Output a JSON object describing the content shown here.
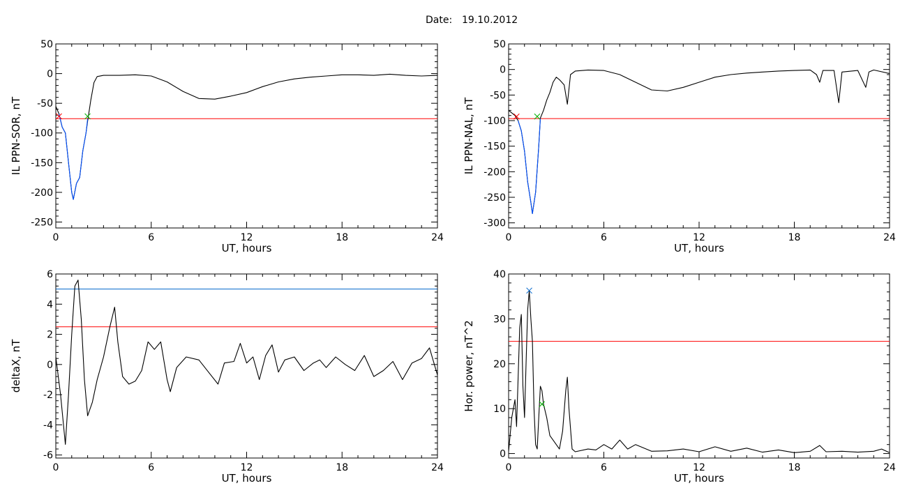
{
  "title_label": "Date:",
  "title_date": "19.10.2012",
  "chart_data": [
    {
      "id": "tl",
      "type": "line",
      "ylabel": "IL PPN-SOR, nT",
      "xlabel": "UT, hours",
      "xlim": [
        0,
        24
      ],
      "ylim": [
        -260,
        50
      ],
      "xticks": [
        0,
        6,
        12,
        18,
        24
      ],
      "yticks": [
        50,
        0,
        -50,
        -100,
        -150,
        -200,
        -250
      ],
      "threshold": [
        {
          "y": -76,
          "color": "#ff0000"
        }
      ],
      "series": [
        {
          "color": "#000000",
          "points": [
            [
              0,
              -55
            ],
            [
              0.2,
              -68
            ],
            [
              0.4,
              -90
            ],
            [
              0.6,
              -100
            ],
            [
              0.8,
              -150
            ],
            [
              1.0,
              -200
            ],
            [
              1.1,
              -212
            ],
            [
              1.3,
              -185
            ],
            [
              1.5,
              -175
            ],
            [
              1.7,
              -130
            ],
            [
              1.9,
              -100
            ],
            [
              2.0,
              -80
            ],
            [
              2.2,
              -45
            ],
            [
              2.4,
              -15
            ],
            [
              2.6,
              -5
            ],
            [
              3,
              -3
            ],
            [
              4,
              -3
            ],
            [
              5,
              -2
            ],
            [
              6,
              -4
            ],
            [
              7,
              -14
            ],
            [
              8,
              -30
            ],
            [
              9,
              -42
            ],
            [
              10,
              -43
            ],
            [
              11,
              -38
            ],
            [
              12,
              -32
            ],
            [
              13,
              -22
            ],
            [
              14,
              -14
            ],
            [
              15,
              -9
            ],
            [
              16,
              -6
            ],
            [
              17,
              -4
            ],
            [
              18,
              -2
            ],
            [
              19,
              -2
            ],
            [
              20,
              -3
            ],
            [
              21,
              -1
            ],
            [
              22,
              -3
            ],
            [
              23,
              -4
            ],
            [
              24,
              -3
            ]
          ]
        },
        {
          "color": "#0050ff",
          "points": [
            [
              0.2,
              -68
            ],
            [
              0.4,
              -90
            ],
            [
              0.6,
              -100
            ],
            [
              0.8,
              -150
            ],
            [
              1.0,
              -200
            ],
            [
              1.1,
              -212
            ],
            [
              1.3,
              -185
            ],
            [
              1.5,
              -175
            ],
            [
              1.7,
              -130
            ],
            [
              1.9,
              -100
            ],
            [
              2.0,
              -76
            ]
          ]
        }
      ],
      "markers": [
        {
          "x": 0.2,
          "y": -72,
          "color": "#ff0000"
        },
        {
          "x": 2.0,
          "y": -72,
          "color": "#00b000"
        }
      ]
    },
    {
      "id": "tr",
      "type": "line",
      "ylabel": "IL PPN-NAL, nT",
      "xlabel": "UT, hours",
      "xlim": [
        0,
        24
      ],
      "ylim": [
        -310,
        50
      ],
      "xticks": [
        0,
        6,
        12,
        18,
        24
      ],
      "yticks": [
        50,
        0,
        -50,
        -100,
        -150,
        -200,
        -250,
        -300
      ],
      "threshold": [
        {
          "y": -96,
          "color": "#ff0000"
        }
      ],
      "series": [
        {
          "color": "#000000",
          "points": [
            [
              0,
              -80
            ],
            [
              0.4,
              -90
            ],
            [
              0.6,
              -100
            ],
            [
              0.8,
              -120
            ],
            [
              1.0,
              -160
            ],
            [
              1.2,
              -220
            ],
            [
              1.4,
              -260
            ],
            [
              1.5,
              -282
            ],
            [
              1.7,
              -240
            ],
            [
              1.9,
              -150
            ],
            [
              2.0,
              -95
            ],
            [
              2.2,
              -80
            ],
            [
              2.4,
              -60
            ],
            [
              2.6,
              -45
            ],
            [
              2.8,
              -25
            ],
            [
              3.0,
              -15
            ],
            [
              3.2,
              -20
            ],
            [
              3.5,
              -30
            ],
            [
              3.7,
              -68
            ],
            [
              3.9,
              -10
            ],
            [
              4.2,
              -3
            ],
            [
              5,
              -1
            ],
            [
              6,
              -2
            ],
            [
              7,
              -10
            ],
            [
              8,
              -25
            ],
            [
              9,
              -40
            ],
            [
              10,
              -42
            ],
            [
              11,
              -35
            ],
            [
              12,
              -25
            ],
            [
              13,
              -15
            ],
            [
              14,
              -10
            ],
            [
              15,
              -7
            ],
            [
              16,
              -5
            ],
            [
              17,
              -3
            ],
            [
              18,
              -2
            ],
            [
              19,
              -1
            ],
            [
              19.4,
              -10
            ],
            [
              19.6,
              -25
            ],
            [
              19.8,
              -2
            ],
            [
              20.5,
              -2
            ],
            [
              20.8,
              -65
            ],
            [
              21.0,
              -5
            ],
            [
              22,
              -2
            ],
            [
              22.5,
              -35
            ],
            [
              22.7,
              -5
            ],
            [
              23,
              -1
            ],
            [
              24,
              -8
            ]
          ]
        },
        {
          "color": "#0050ff",
          "points": [
            [
              0.6,
              -100
            ],
            [
              0.8,
              -120
            ],
            [
              1.0,
              -160
            ],
            [
              1.2,
              -220
            ],
            [
              1.4,
              -260
            ],
            [
              1.5,
              -282
            ],
            [
              1.7,
              -240
            ],
            [
              1.9,
              -150
            ],
            [
              2.0,
              -96
            ]
          ]
        }
      ],
      "markers": [
        {
          "x": 0.5,
          "y": -92,
          "color": "#ff0000"
        },
        {
          "x": 1.8,
          "y": -92,
          "color": "#00b000"
        }
      ]
    },
    {
      "id": "bl",
      "type": "line",
      "ylabel": "deltaX, nT",
      "xlabel": "UT, hours",
      "xlim": [
        0,
        24
      ],
      "ylim": [
        -6.2,
        6
      ],
      "xticks": [
        0,
        6,
        12,
        18,
        24
      ],
      "yticks": [
        6,
        4,
        2,
        0,
        -2,
        -4,
        -6
      ],
      "threshold": [
        {
          "y": 5.0,
          "color": "#0066cc"
        },
        {
          "y": 2.5,
          "color": "#ff0000"
        }
      ],
      "series": [
        {
          "color": "#000000",
          "points": [
            [
              0,
              0.5
            ],
            [
              0.3,
              -2
            ],
            [
              0.6,
              -5.3
            ],
            [
              0.8,
              -2
            ],
            [
              1.0,
              2
            ],
            [
              1.2,
              5.2
            ],
            [
              1.4,
              5.6
            ],
            [
              1.6,
              3
            ],
            [
              1.8,
              -1
            ],
            [
              2.0,
              -3.4
            ],
            [
              2.3,
              -2.5
            ],
            [
              2.6,
              -1
            ],
            [
              3.0,
              0.5
            ],
            [
              3.4,
              2.5
            ],
            [
              3.7,
              3.8
            ],
            [
              3.9,
              1.5
            ],
            [
              4.2,
              -0.8
            ],
            [
              4.6,
              -1.3
            ],
            [
              5.0,
              -1.1
            ],
            [
              5.4,
              -0.4
            ],
            [
              5.8,
              1.5
            ],
            [
              6.2,
              1.0
            ],
            [
              6.6,
              1.5
            ],
            [
              7.0,
              -1
            ],
            [
              7.2,
              -1.8
            ],
            [
              7.6,
              -0.2
            ],
            [
              8.2,
              0.5
            ],
            [
              9.0,
              0.3
            ],
            [
              9.6,
              -0.5
            ],
            [
              10.2,
              -1.3
            ],
            [
              10.6,
              0.1
            ],
            [
              11.2,
              0.2
            ],
            [
              11.6,
              1.4
            ],
            [
              12.0,
              0.1
            ],
            [
              12.4,
              0.5
            ],
            [
              12.8,
              -1
            ],
            [
              13.2,
              0.6
            ],
            [
              13.6,
              1.3
            ],
            [
              14.0,
              -0.5
            ],
            [
              14.4,
              0.3
            ],
            [
              15.0,
              0.5
            ],
            [
              15.6,
              -0.4
            ],
            [
              16.2,
              0.1
            ],
            [
              16.6,
              0.3
            ],
            [
              17.0,
              -0.2
            ],
            [
              17.6,
              0.5
            ],
            [
              18.2,
              0.0
            ],
            [
              18.8,
              -0.4
            ],
            [
              19.4,
              0.6
            ],
            [
              20.0,
              -0.8
            ],
            [
              20.6,
              -0.4
            ],
            [
              21.2,
              0.2
            ],
            [
              21.8,
              -1
            ],
            [
              22.4,
              0.1
            ],
            [
              23.0,
              0.4
            ],
            [
              23.5,
              1.1
            ],
            [
              24,
              -0.7
            ]
          ]
        }
      ],
      "markers": []
    },
    {
      "id": "br",
      "type": "line",
      "ylabel": "Hor. power, nT^2",
      "xlabel": "UT, hours",
      "xlim": [
        0,
        24
      ],
      "ylim": [
        -1,
        40
      ],
      "xticks": [
        0,
        6,
        12,
        18,
        24
      ],
      "yticks": [
        40,
        30,
        20,
        10,
        0
      ],
      "threshold": [
        {
          "y": 25,
          "color": "#ff0000"
        }
      ],
      "series": [
        {
          "color": "#000000",
          "points": [
            [
              0,
              0.5
            ],
            [
              0.2,
              8
            ],
            [
              0.4,
              12
            ],
            [
              0.5,
              6
            ],
            [
              0.7,
              28
            ],
            [
              0.8,
              31
            ],
            [
              0.9,
              15
            ],
            [
              1.0,
              8
            ],
            [
              1.1,
              20
            ],
            [
              1.2,
              32
            ],
            [
              1.3,
              36.3
            ],
            [
              1.4,
              30
            ],
            [
              1.5,
              25
            ],
            [
              1.6,
              10
            ],
            [
              1.7,
              2
            ],
            [
              1.8,
              1
            ],
            [
              1.9,
              8
            ],
            [
              2.0,
              15
            ],
            [
              2.1,
              14
            ],
            [
              2.2,
              11
            ],
            [
              2.4,
              8
            ],
            [
              2.6,
              4
            ],
            [
              2.8,
              3
            ],
            [
              3.0,
              2
            ],
            [
              3.2,
              1
            ],
            [
              3.4,
              5
            ],
            [
              3.6,
              14
            ],
            [
              3.7,
              17
            ],
            [
              3.8,
              10
            ],
            [
              4.0,
              1
            ],
            [
              4.2,
              0.4
            ],
            [
              5,
              1
            ],
            [
              5.5,
              0.8
            ],
            [
              6,
              2
            ],
            [
              6.5,
              1
            ],
            [
              7,
              3
            ],
            [
              7.5,
              1
            ],
            [
              8,
              2
            ],
            [
              9,
              0.5
            ],
            [
              10,
              0.6
            ],
            [
              11,
              1
            ],
            [
              12,
              0.4
            ],
            [
              13,
              1.5
            ],
            [
              14,
              0.5
            ],
            [
              15,
              1.2
            ],
            [
              16,
              0.3
            ],
            [
              17,
              0.8
            ],
            [
              18,
              0.2
            ],
            [
              19,
              0.5
            ],
            [
              19.6,
              1.8
            ],
            [
              20,
              0.4
            ],
            [
              21,
              0.5
            ],
            [
              22,
              0.3
            ],
            [
              23,
              0.5
            ],
            [
              23.5,
              1
            ],
            [
              24,
              0.2
            ]
          ]
        }
      ],
      "markers": [
        {
          "x": 1.3,
          "y": 36.3,
          "color": "#0066cc"
        },
        {
          "x": 2.1,
          "y": 11,
          "color": "#00b000"
        }
      ]
    }
  ]
}
